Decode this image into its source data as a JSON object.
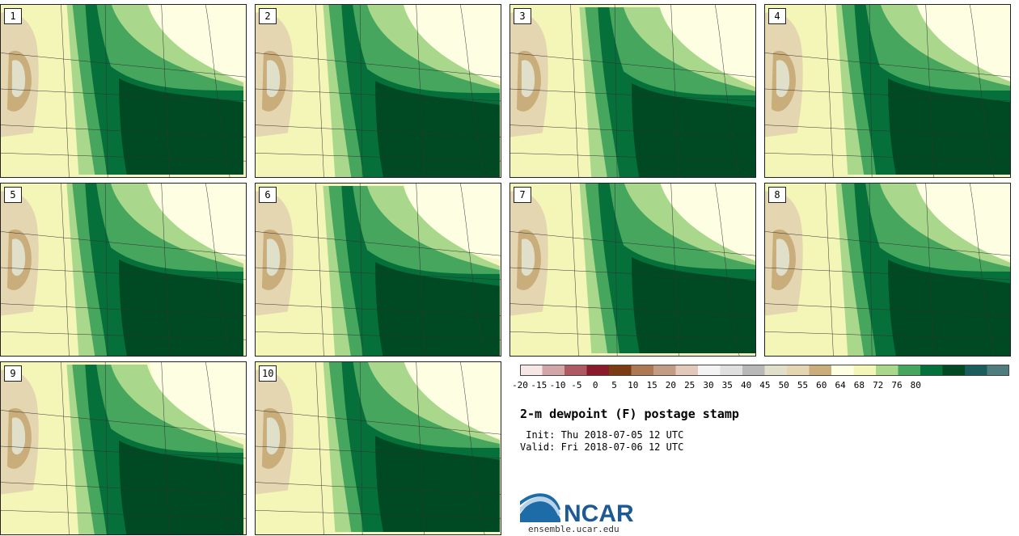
{
  "panels": [
    {
      "label": "1"
    },
    {
      "label": "2"
    },
    {
      "label": "3"
    },
    {
      "label": "4"
    },
    {
      "label": "5"
    },
    {
      "label": "6"
    },
    {
      "label": "7"
    },
    {
      "label": "8"
    },
    {
      "label": "9"
    },
    {
      "label": "10"
    }
  ],
  "colorbar": {
    "colors": [
      "#f6e6e6",
      "#d2a5a9",
      "#ad5a62",
      "#8a1b2a",
      "#7b3c12",
      "#ac7954",
      "#c29c85",
      "#e2c9b9",
      "#f3f3f3",
      "#dfdfdf",
      "#b8b8b8",
      "#dfdfca",
      "#e4d6b1",
      "#c9ad7a",
      "#fefee3",
      "#f4f6b8",
      "#a9d88c",
      "#47a65d",
      "#05703a",
      "#004a23",
      "#1b5c5c",
      "#4f7d7d"
    ],
    "ticks": [
      "-20",
      "-15",
      "-10",
      "-5",
      "0",
      "5",
      "10",
      "15",
      "20",
      "25",
      "30",
      "35",
      "40",
      "45",
      "50",
      "55",
      "60",
      "64",
      "68",
      "72",
      "76",
      "80"
    ]
  },
  "title": "2-m dewpoint (F) postage stamp",
  "init_line": " Init: Thu 2018-07-05 12 UTC",
  "valid_line": "Valid: Fri 2018-07-06 12 UTC",
  "logo_text": "NCAR",
  "logo_url": "ensemble.ucar.edu"
}
